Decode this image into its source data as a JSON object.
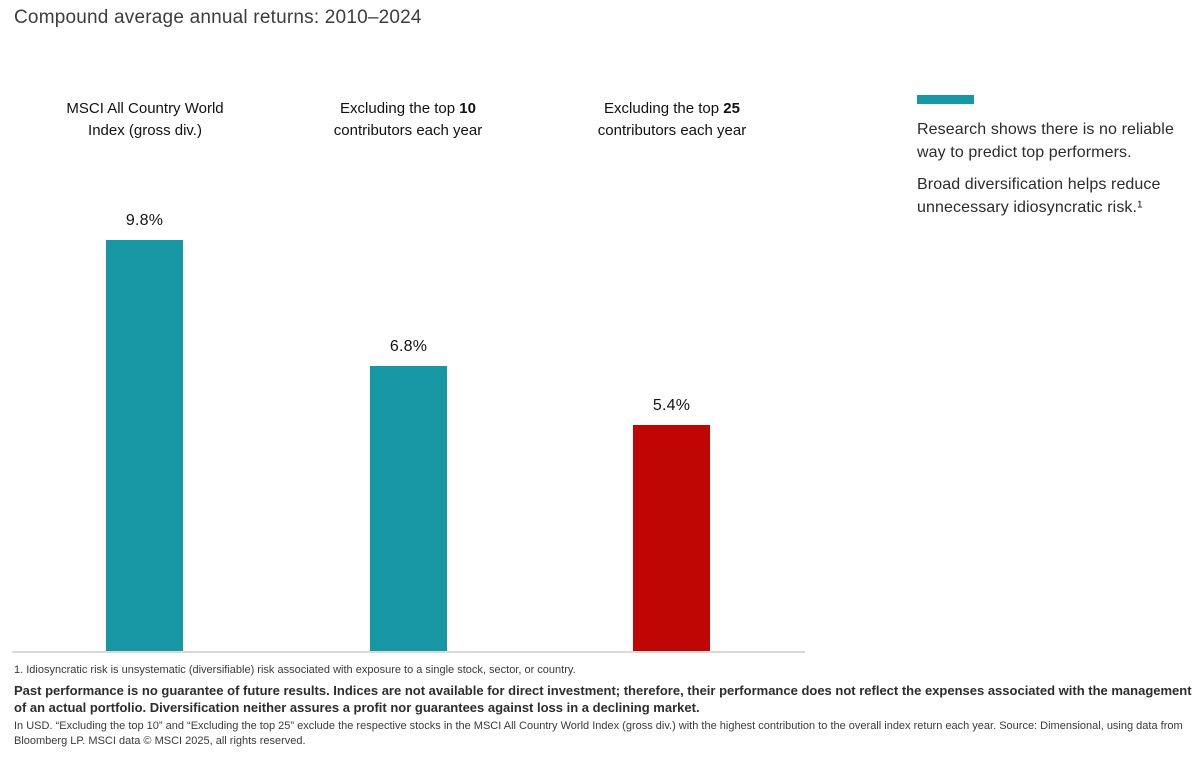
{
  "title": "Compound average annual returns: 2010–2024",
  "colors": {
    "teal": "#1697A3",
    "red": "#C00505",
    "axis_line": "#D9D9D9",
    "title_text": "#3D3D3D"
  },
  "chart_data": {
    "type": "bar",
    "title": "Compound average annual returns: 2010–2024",
    "categories": [
      "MSCI All Country World Index (gross div.)",
      "Excluding the top 10 contributors each year",
      "Excluding the top 25 contributors each year"
    ],
    "values": [
      9.8,
      6.8,
      5.4
    ],
    "value_labels": [
      "9.8%",
      "6.8%",
      "5.4%"
    ],
    "bar_colors": [
      "#1697A3",
      "#1697A3",
      "#C00505"
    ],
    "ylabel": "",
    "xlabel": "",
    "ylim": [
      0,
      10.5
    ],
    "grid": false,
    "legend": "none",
    "baseline_axis": true
  },
  "headers": [
    {
      "line1": "MSCI All Country World",
      "line2": "Index (gross div.)"
    },
    {
      "prefix": "Excluding the top ",
      "number": "10",
      "line2": "contributors each year"
    },
    {
      "prefix": "Excluding the top ",
      "number": "25",
      "line2": "contributors each year"
    }
  ],
  "side_note": {
    "para1": "Research shows there is no reliable way to predict top performers.",
    "para2": "Broad diversification helps reduce unnecessary idiosyncratic risk.¹"
  },
  "footer": {
    "footnote1": "1. Idiosyncratic risk is unsystematic (diversifiable) risk associated with exposure to a single stock, sector, or country.",
    "disclaimer_bold": "Past performance is no guarantee of future results. Indices are not available for direct investment; therefore, their performance does not reflect the expenses associated with the management of an actual portfolio. Diversification neither assures a profit nor guarantees against loss in a declining market.",
    "fine_print": "In USD. “Excluding the top 10” and “Excluding the top 25” exclude the respective stocks in the MSCI All Country World Index (gross div.) with the highest contribution to the overall index return each year. Source: Dimensional, using data from Bloomberg LP. MSCI data © MSCI 2025, all rights reserved."
  }
}
